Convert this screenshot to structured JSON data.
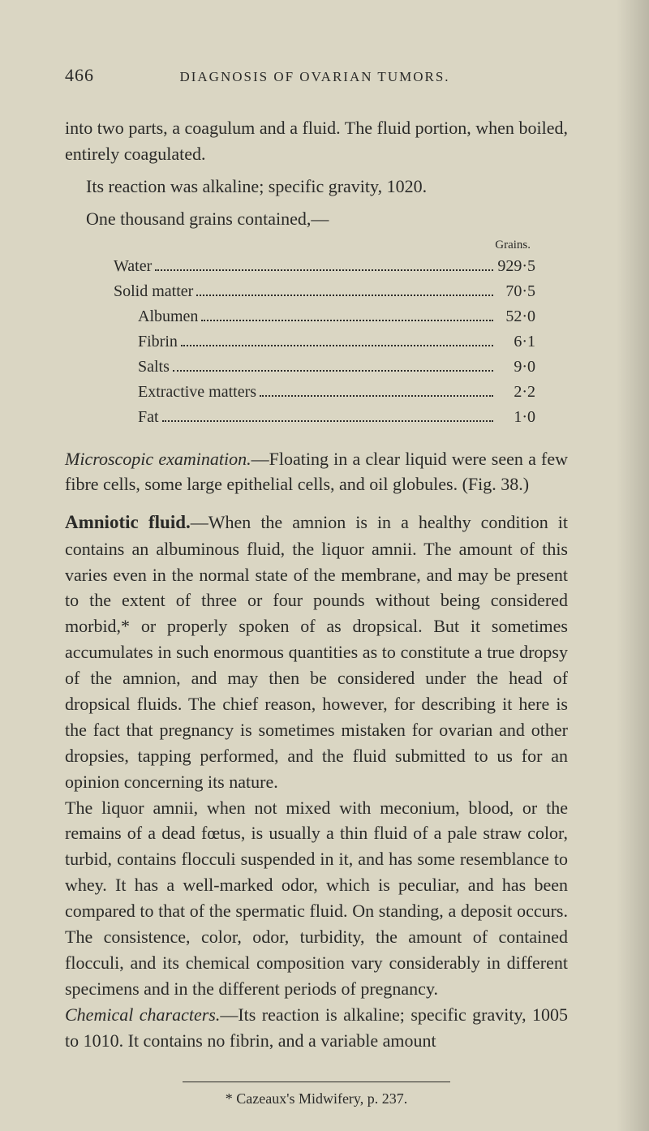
{
  "page": {
    "number": "466",
    "running_head": "DIAGNOSIS OF OVARIAN TUMORS."
  },
  "intro": {
    "p1a": "into two parts, a coagulum and a fluid. The fluid portion, when boiled, entirely coagulated.",
    "p1b": "Its reaction was alkaline; specific gravity, 1020.",
    "p1c": "One thousand grains contained,—"
  },
  "grains_table": {
    "header": "Grains.",
    "rows": [
      {
        "label": "Water",
        "value": "929·5",
        "indented": false
      },
      {
        "label": "Solid matter",
        "value": "70·5",
        "indented": false
      },
      {
        "label": "Albumen",
        "value": "52·0",
        "indented": true
      },
      {
        "label": "Fibrin",
        "value": "6·1",
        "indented": true
      },
      {
        "label": "Salts",
        "value": "9·0",
        "indented": true
      },
      {
        "label": "Extractive matters",
        "value": "2·2",
        "indented": true
      },
      {
        "label": "Fat",
        "value": "1·0",
        "indented": true
      }
    ]
  },
  "microscopic": {
    "lead_italic": "Microscopic examination.",
    "text": "—Floating in a clear liquid were seen a few fibre cells, some large epithelial cells, and oil globules. (Fig. 38.)"
  },
  "amniotic": {
    "heading": "Amniotic fluid.",
    "p1": "—When the amnion is in a healthy condition it contains an albuminous fluid, the liquor amnii. The amount of this varies even in the normal state of the membrane, and may be present to the extent of three or four pounds without being considered morbid,* or properly spoken of as dropsical. But it sometimes accumulates in such enormous quantities as to constitute a true dropsy of the amnion, and may then be considered under the head of dropsical fluids. The chief reason, however, for describing it here is the fact that pregnancy is sometimes mistaken for ovarian and other dropsies, tapping performed, and the fluid submitted to us for an opinion concerning its nature.",
    "p2": "The liquor amnii, when not mixed with meconium, blood, or the remains of a dead fœtus, is usually a thin fluid of a pale straw color, turbid, contains flocculi suspended in it, and has some resemblance to whey. It has a well-marked odor, which is peculiar, and has been compared to that of the spermatic fluid. On standing, a deposit occurs. The consistence, color, odor, turbidity, the amount of contained flocculi, and its chemical composition vary considerably in different specimens and in the different periods of pregnancy.",
    "p3_lead_italic": "Chemical characters.",
    "p3": "—Its reaction is alkaline; specific gravity, 1005 to 1010. It contains no fibrin, and a variable amount"
  },
  "footnote": {
    "text": "* Cazeaux's Midwifery, p. 237."
  }
}
